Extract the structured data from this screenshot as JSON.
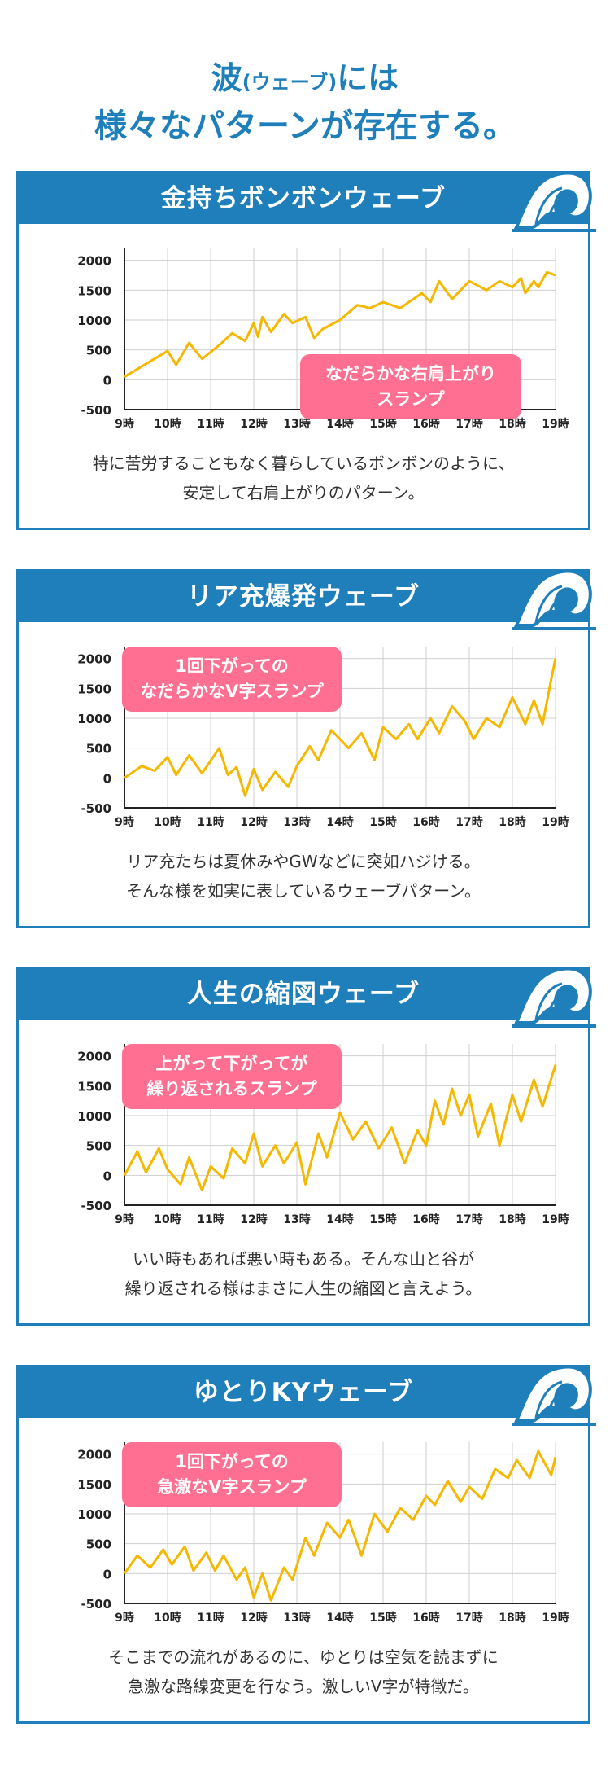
{
  "title": {
    "part1": "波",
    "part2": "(ウェーブ)",
    "part3": "には",
    "line2": "様々なパターンが存在する。"
  },
  "colors": {
    "primary": "#1e7fba",
    "line": "#f5b800",
    "callout": "#ff6f91",
    "grid": "#cfcfcf",
    "axis": "#222222"
  },
  "cards": [
    {
      "header": "金持ちボンボンウェーブ",
      "icon": "wave-icon",
      "callout": [
        "なだらかな右肩上がり",
        "スランプ"
      ],
      "description": [
        "特に苦労することもなく暮らしているボンボンのように、",
        "安定して右肩上がりのパターン。"
      ]
    },
    {
      "header": "リア充爆発ウェーブ",
      "icon": "wave-icon",
      "callout": [
        "1回下がっての",
        "なだらかなV字スランプ"
      ],
      "description": [
        "リア充たちは夏休みやGWなどに突如ハジける。",
        "そんな様を如実に表しているウェーブパターン。"
      ]
    },
    {
      "header": "人生の縮図ウェーブ",
      "icon": "wave-icon",
      "callout": [
        "上がって下がってが",
        "繰り返されるスランプ"
      ],
      "description": [
        "いい時もあれば悪い時もある。そんな山と谷が",
        "繰り返される様はまさに人生の縮図と言えよう。"
      ]
    },
    {
      "header": "ゆとりKYウェーブ",
      "icon": "wave-icon",
      "callout": [
        "1回下がっての",
        "急激なV字スランプ"
      ],
      "description": [
        "そこまでの流れがあるのに、ゆとりは空気を読まずに",
        "急激な路線変更を行なう。激しいV字が特徴だ。"
      ]
    }
  ],
  "chart_data": [
    {
      "type": "line",
      "x_ticks": [
        "9時",
        "10時",
        "11時",
        "12時",
        "13時",
        "14時",
        "15時",
        "16時",
        "17時",
        "18時",
        "19時"
      ],
      "y_ticks": [
        "2000",
        "1500",
        "1000",
        "500",
        "0",
        "-500"
      ],
      "ylim": [
        -500,
        2200
      ],
      "xlim": [
        9,
        19
      ],
      "grid": true,
      "x": [
        9,
        10,
        10.2,
        10.5,
        10.8,
        11.2,
        11.5,
        11.8,
        12,
        12.1,
        12.2,
        12.4,
        12.7,
        12.9,
        13.2,
        13.4,
        13.6,
        14,
        14.4,
        14.7,
        15,
        15.4,
        15.9,
        16.1,
        16.3,
        16.6,
        17,
        17.4,
        17.7,
        18,
        18.2,
        18.3,
        18.5,
        18.6,
        18.8,
        19
      ],
      "y": [
        50,
        480,
        250,
        620,
        350,
        580,
        780,
        650,
        950,
        720,
        1050,
        800,
        1100,
        950,
        1050,
        700,
        850,
        1000,
        1250,
        1200,
        1300,
        1200,
        1450,
        1300,
        1650,
        1350,
        1650,
        1500,
        1650,
        1550,
        1700,
        1450,
        1650,
        1550,
        1800,
        1750
      ]
    },
    {
      "type": "line",
      "x_ticks": [
        "9時",
        "10時",
        "11時",
        "12時",
        "13時",
        "14時",
        "15時",
        "16時",
        "17時",
        "18時",
        "19時"
      ],
      "y_ticks": [
        "2000",
        "1500",
        "1000",
        "500",
        "0",
        "-500"
      ],
      "ylim": [
        -500,
        2200
      ],
      "xlim": [
        9,
        19
      ],
      "grid": true,
      "x": [
        9,
        9.4,
        9.7,
        10,
        10.2,
        10.5,
        10.8,
        11.2,
        11.4,
        11.6,
        11.8,
        12,
        12.2,
        12.5,
        12.8,
        13,
        13.3,
        13.5,
        13.8,
        14.2,
        14.5,
        14.8,
        15,
        15.3,
        15.6,
        15.8,
        16.1,
        16.3,
        16.6,
        16.9,
        17.1,
        17.4,
        17.7,
        18,
        18.3,
        18.5,
        18.7,
        18.9,
        19
      ],
      "y": [
        0,
        200,
        120,
        350,
        50,
        380,
        80,
        500,
        50,
        180,
        -300,
        150,
        -200,
        100,
        -150,
        200,
        530,
        300,
        800,
        500,
        750,
        300,
        850,
        650,
        900,
        650,
        1000,
        750,
        1200,
        950,
        650,
        1000,
        850,
        1350,
        900,
        1300,
        900,
        1650,
        2000
      ]
    },
    {
      "type": "line",
      "x_ticks": [
        "9時",
        "10時",
        "11時",
        "12時",
        "13時",
        "14時",
        "15時",
        "16時",
        "17時",
        "18時",
        "19時"
      ],
      "y_ticks": [
        "2000",
        "1500",
        "1000",
        "500",
        "0",
        "-500"
      ],
      "ylim": [
        -500,
        2200
      ],
      "xlim": [
        9,
        19
      ],
      "grid": true,
      "x": [
        9,
        9.3,
        9.5,
        9.8,
        10,
        10.3,
        10.5,
        10.8,
        11,
        11.3,
        11.5,
        11.8,
        12,
        12.2,
        12.5,
        12.7,
        13,
        13.2,
        13.5,
        13.7,
        14,
        14.3,
        14.6,
        14.9,
        15.2,
        15.5,
        15.8,
        16,
        16.2,
        16.4,
        16.6,
        16.8,
        17,
        17.2,
        17.5,
        17.7,
        18,
        18.2,
        18.5,
        18.7,
        19
      ],
      "y": [
        0,
        400,
        50,
        450,
        100,
        -150,
        300,
        -250,
        150,
        -50,
        450,
        200,
        700,
        150,
        500,
        200,
        550,
        -150,
        700,
        300,
        1050,
        600,
        900,
        450,
        800,
        200,
        750,
        500,
        1250,
        850,
        1450,
        1000,
        1350,
        650,
        1200,
        500,
        1350,
        900,
        1600,
        1150,
        1850
      ]
    },
    {
      "type": "line",
      "x_ticks": [
        "9時",
        "10時",
        "11時",
        "12時",
        "13時",
        "14時",
        "15時",
        "16時",
        "17時",
        "18時",
        "19時"
      ],
      "y_ticks": [
        "2000",
        "1500",
        "1000",
        "500",
        "0",
        "-500"
      ],
      "ylim": [
        -500,
        2200
      ],
      "xlim": [
        9,
        19
      ],
      "grid": true,
      "x": [
        9,
        9.3,
        9.6,
        9.9,
        10.1,
        10.4,
        10.6,
        10.9,
        11.1,
        11.3,
        11.6,
        11.8,
        12,
        12.2,
        12.4,
        12.7,
        12.9,
        13.2,
        13.4,
        13.7,
        14,
        14.2,
        14.5,
        14.8,
        15.1,
        15.4,
        15.7,
        16,
        16.2,
        16.5,
        16.8,
        17,
        17.3,
        17.6,
        17.9,
        18.1,
        18.4,
        18.6,
        18.9,
        19
      ],
      "y": [
        0,
        300,
        100,
        400,
        150,
        450,
        50,
        350,
        50,
        300,
        -100,
        100,
        -400,
        0,
        -450,
        100,
        -100,
        600,
        300,
        850,
        600,
        900,
        300,
        1000,
        700,
        1100,
        900,
        1300,
        1150,
        1550,
        1200,
        1450,
        1250,
        1750,
        1600,
        1900,
        1600,
        2050,
        1650,
        1950
      ]
    }
  ]
}
